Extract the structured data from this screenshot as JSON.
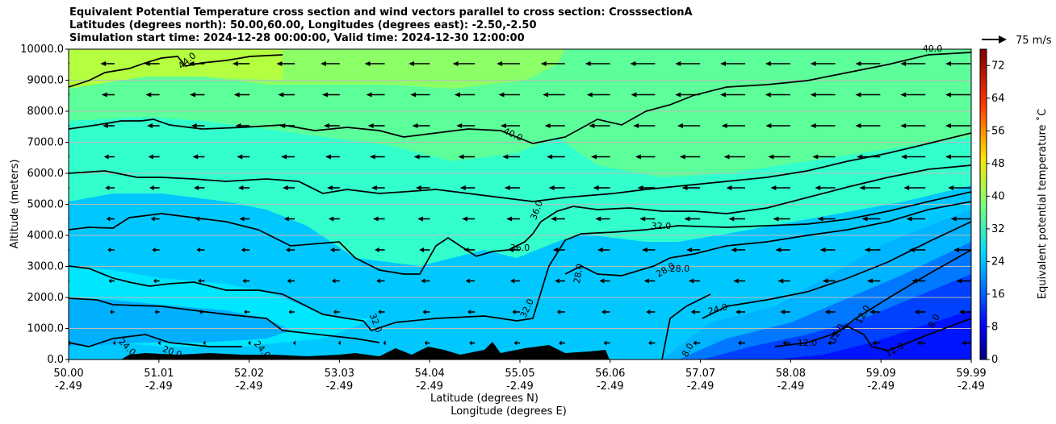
{
  "chart_data": {
    "type": "heatmap",
    "title_lines": [
      "Equivalent Potential Temperature cross section and wind vectors parallel to cross section: CrosssectionA",
      "Latitudes (degrees north): 50.00,60.00, Longitudes (degrees east): -2.50,-2.50",
      "Simulation start time: 2024-12-28 00:00:00, Valid time: 2024-12-30 12:00:00"
    ],
    "ylabel": "Altitude (meters)",
    "xlabel_lines": [
      "Latitude (degrees N)",
      "Longitude (degrees E)"
    ],
    "ylim": [
      0,
      10000
    ],
    "y_ticks": [
      "0.0",
      "1000.0",
      "2000.0",
      "3000.0",
      "4000.0",
      "5000.0",
      "6000.0",
      "7000.0",
      "8000.0",
      "9000.0",
      "10000.0"
    ],
    "x_ticks": [
      {
        "lat": "50.00",
        "lon": "-2.49"
      },
      {
        "lat": "51.01",
        "lon": "-2.49"
      },
      {
        "lat": "52.02",
        "lon": "-2.49"
      },
      {
        "lat": "53.03",
        "lon": "-2.49"
      },
      {
        "lat": "54.04",
        "lon": "-2.49"
      },
      {
        "lat": "55.05",
        "lon": "-2.49"
      },
      {
        "lat": "56.06",
        "lon": "-2.49"
      },
      {
        "lat": "57.07",
        "lon": "-2.49"
      },
      {
        "lat": "58.08",
        "lon": "-2.49"
      },
      {
        "lat": "59.09",
        "lon": "-2.49"
      },
      {
        "lat": "59.99",
        "lon": "-2.49"
      }
    ],
    "xlim": [
      50.0,
      59.99
    ],
    "colorbar": {
      "label": "Equivalent potential temperature ˚C",
      "range": [
        0,
        76
      ],
      "ticks": [
        "0",
        "8",
        "16",
        "24",
        "32",
        "40",
        "48",
        "56",
        "64",
        "72"
      ]
    },
    "wind_key": "75 m/s",
    "contour_labels": [
      "44.0",
      "40.0",
      "40.0",
      "36.0",
      "36.0",
      "32.0",
      "32.0",
      "32.0",
      "28.0",
      "28.0",
      "28.0",
      "24.0",
      "24.0",
      "24.0",
      "20.0",
      "12.0",
      "12.0",
      "12.0",
      "12.0",
      "8.0",
      "8.0"
    ]
  }
}
